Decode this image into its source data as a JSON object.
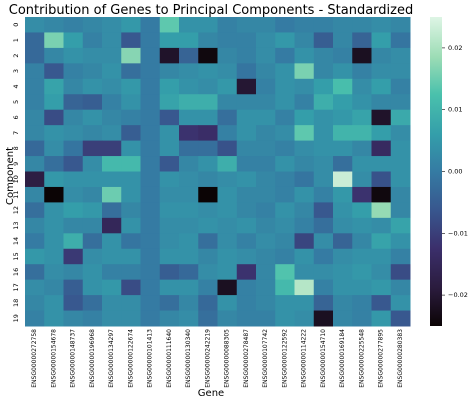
{
  "chart_data": {
    "type": "heatmap",
    "title": "Contribution of Genes to Principal Components - Standardized",
    "xlabel": "Gene",
    "ylabel": "Component",
    "x_categories": [
      "ENSG00000272758",
      "ENSG00000154678",
      "ENSG00000148737",
      "ENSG00000196968",
      "ENSG00000134297",
      "ENSG00000122674",
      "ENSG00000101413",
      "ENSG00000111640",
      "ENSG00000130340",
      "ENSG00000242219",
      "ENSG00000088305",
      "ENSG00000278487",
      "ENSG00000107742",
      "ENSG00000122592",
      "ENSG00000114222",
      "ENSG00000154710",
      "ENSG00000169184",
      "ENSG00000225548",
      "ENSG00000277895",
      "ENSG00000280383"
    ],
    "y_categories": [
      "0",
      "1",
      "2",
      "3",
      "4",
      "5",
      "6",
      "7",
      "8",
      "9",
      "10",
      "11",
      "12",
      "13",
      "14",
      "15",
      "16",
      "17",
      "18",
      "19"
    ],
    "colormap": "mako",
    "colorbar_ticks": [
      0.02,
      0.01,
      0.0,
      -0.01,
      -0.02
    ],
    "colorbar_tick_labels": [
      "0.02",
      "0.01",
      "0.00",
      "−0.01",
      "−0.02"
    ],
    "vmin": -0.025,
    "vmax": 0.025,
    "values": [
      [
        0.003,
        0.002,
        0.001,
        0.002,
        0.003,
        0.005,
        0.0,
        0.014,
        0.004,
        0.004,
        0.001,
        0.002,
        0.002,
        0.0,
        0.001,
        0.001,
        0.002,
        0.002,
        0.003,
        0.002
      ],
      [
        -0.003,
        0.016,
        0.006,
        0.001,
        0.003,
        -0.006,
        0.0,
        0.006,
        0.006,
        0.002,
        0.001,
        0.001,
        0.003,
        0.005,
        0.002,
        -0.005,
        0.002,
        -0.004,
        0.006,
        -0.001
      ],
      [
        -0.003,
        0.002,
        0.004,
        0.003,
        0.003,
        0.017,
        0.0,
        -0.021,
        -0.004,
        -0.024,
        0.002,
        0.001,
        0.003,
        0.0,
        0.004,
        0.002,
        0.001,
        -0.022,
        0.002,
        0.003
      ],
      [
        0.001,
        -0.006,
        0.001,
        0.002,
        0.004,
        -0.002,
        0.0,
        0.002,
        0.003,
        0.004,
        0.003,
        -0.001,
        0.002,
        0.004,
        0.016,
        0.002,
        0.004,
        0.001,
        0.003,
        0.003
      ],
      [
        0.001,
        0.007,
        0.002,
        0.004,
        0.003,
        0.005,
        0.0,
        0.006,
        0.004,
        0.003,
        0.005,
        -0.02,
        0.001,
        0.004,
        0.003,
        0.006,
        0.012,
        0.003,
        0.006,
        0.001
      ],
      [
        0.001,
        0.006,
        -0.004,
        -0.005,
        0.001,
        0.004,
        0.0,
        0.007,
        0.009,
        0.009,
        0.002,
        0.002,
        0.002,
        0.004,
        0.001,
        0.009,
        0.006,
        0.004,
        0.002,
        0.002
      ],
      [
        0.002,
        -0.008,
        0.002,
        0.004,
        0.002,
        0.001,
        0.0,
        -0.006,
        0.004,
        0.004,
        -0.002,
        0.004,
        0.004,
        0.001,
        0.006,
        0.004,
        0.005,
        0.007,
        -0.021,
        0.008
      ],
      [
        0.002,
        0.004,
        0.003,
        0.002,
        0.003,
        -0.005,
        0.0,
        0.004,
        -0.012,
        -0.013,
        0.001,
        0.004,
        0.002,
        0.003,
        0.014,
        0.004,
        0.01,
        0.01,
        0.006,
        0.003
      ],
      [
        -0.003,
        0.003,
        -0.001,
        -0.01,
        -0.01,
        0.004,
        0.0,
        0.004,
        -0.002,
        -0.002,
        -0.007,
        0.002,
        0.002,
        0.001,
        0.003,
        0.004,
        0.004,
        0.002,
        -0.014,
        0.004
      ],
      [
        0.002,
        -0.002,
        -0.006,
        0.003,
        0.011,
        0.011,
        0.0,
        -0.006,
        0.002,
        0.004,
        0.009,
        0.001,
        0.001,
        0.004,
        0.002,
        0.003,
        -0.002,
        0.004,
        0.004,
        0.004
      ],
      [
        -0.018,
        0.005,
        0.004,
        0.004,
        0.004,
        0.004,
        0.0,
        0.004,
        0.003,
        0.002,
        0.003,
        0.004,
        0.002,
        0.001,
        -0.001,
        0.003,
        0.023,
        0.003,
        -0.007,
        0.004
      ],
      [
        0.002,
        -0.025,
        0.003,
        0.002,
        0.015,
        0.004,
        0.0,
        0.003,
        0.003,
        -0.025,
        0.004,
        0.002,
        0.002,
        0.001,
        0.004,
        0.001,
        0.005,
        -0.012,
        -0.024,
        0.002
      ],
      [
        -0.002,
        0.004,
        0.006,
        0.005,
        -0.002,
        0.002,
        0.0,
        0.004,
        0.004,
        0.003,
        0.004,
        0.002,
        0.001,
        0.004,
        0.002,
        -0.006,
        0.004,
        0.006,
        0.018,
        0.002
      ],
      [
        0.002,
        0.004,
        0.002,
        0.002,
        -0.015,
        0.004,
        0.0,
        0.003,
        0.003,
        0.004,
        0.003,
        0.004,
        0.002,
        0.003,
        0.001,
        -0.002,
        0.003,
        0.004,
        0.003,
        0.007
      ],
      [
        0.0,
        0.004,
        0.009,
        -0.002,
        0.004,
        -0.001,
        0.0,
        0.003,
        0.004,
        -0.002,
        0.003,
        0.001,
        0.003,
        0.002,
        -0.009,
        0.003,
        -0.004,
        0.002,
        0.007,
        0.004
      ],
      [
        0.005,
        0.004,
        -0.011,
        0.003,
        0.004,
        0.004,
        0.0,
        0.004,
        0.004,
        0.002,
        0.004,
        0.003,
        0.002,
        0.001,
        0.004,
        0.0,
        0.003,
        0.004,
        0.004,
        0.001
      ],
      [
        -0.002,
        0.003,
        0.002,
        0.004,
        0.001,
        0.001,
        0.0,
        -0.005,
        -0.003,
        0.003,
        0.004,
        -0.012,
        0.002,
        0.013,
        0.003,
        0.003,
        0.004,
        0.005,
        0.003,
        -0.008
      ],
      [
        0.003,
        0.002,
        -0.005,
        0.004,
        0.005,
        -0.008,
        0.0,
        0.004,
        0.004,
        0.001,
        -0.022,
        0.001,
        0.002,
        0.011,
        0.021,
        0.001,
        0.004,
        0.004,
        0.005,
        0.002
      ],
      [
        0.002,
        0.004,
        -0.006,
        -0.002,
        0.003,
        0.003,
        0.0,
        -0.002,
        0.002,
        -0.003,
        0.004,
        0.001,
        0.002,
        0.004,
        0.004,
        -0.004,
        0.002,
        0.001,
        -0.006,
        0.004
      ],
      [
        0.001,
        0.004,
        0.002,
        0.001,
        0.003,
        0.003,
        0.0,
        0.002,
        0.003,
        -0.002,
        0.002,
        0.001,
        0.001,
        0.004,
        0.003,
        -0.022,
        0.002,
        0.001,
        0.005,
        -0.006
      ]
    ]
  }
}
